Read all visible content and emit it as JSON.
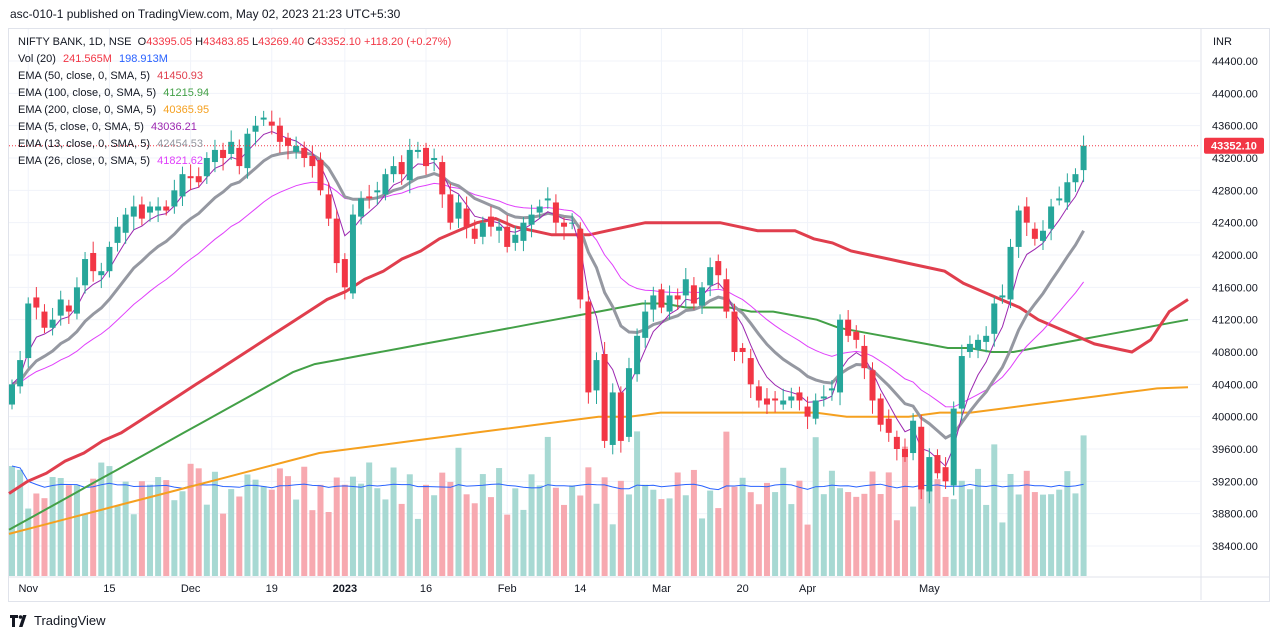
{
  "header": {
    "publish_text": "asc-010-1 published on TradingView.com, May 02, 2023 21:23 UTC+5:30"
  },
  "footer": {
    "brand": "TradingView"
  },
  "legend": {
    "symbol": "NIFTY BANK, 1D, NSE",
    "open": "43395.05",
    "high": "43483.85",
    "low": "43269.40",
    "close": "43352.10",
    "change": "+118.20 (+0.27%)",
    "vol_label": "Vol (20)",
    "vol_value": "241.565M",
    "vol_ma": "198.913M",
    "ema50_label": "EMA (50, close, 0, SMA, 5)",
    "ema50_value": "41450.93",
    "ema100_label": "EMA (100, close, 0, SMA, 5)",
    "ema100_value": "41215.94",
    "ema200_label": "EMA (200, close, 0, SMA, 5)",
    "ema200_value": "40365.95",
    "ema5_label": "EMA (5, close, 0, SMA, 5)",
    "ema5_value": "43036.21",
    "ema13_label": "EMA (13, close, 0, SMA, 5)",
    "ema13_value": "42454.53",
    "ema26_label": "EMA (26, close, 0, SMA, 5)",
    "ema26_value": "41821.62"
  },
  "chart_data": {
    "type": "candlestick",
    "currency": "INR",
    "last_price": "43352.10",
    "y_ticks": [
      "44400.00",
      "44000.00",
      "43600.00",
      "43200.00",
      "42800.00",
      "42400.00",
      "42000.00",
      "41600.00",
      "41200.00",
      "40800.00",
      "40400.00",
      "40000.00",
      "39600.00",
      "39200.00",
      "38800.00",
      "38400.00"
    ],
    "x_ticks": [
      {
        "label": "Nov",
        "i": 2
      },
      {
        "label": "15",
        "i": 12
      },
      {
        "label": "Dec",
        "i": 22
      },
      {
        "label": "19",
        "i": 32
      },
      {
        "label": "2023",
        "i": 41
      },
      {
        "label": "16",
        "i": 51
      },
      {
        "label": "Feb",
        "i": 61
      },
      {
        "label": "14",
        "i": 70
      },
      {
        "label": "Mar",
        "i": 80
      },
      {
        "label": "20",
        "i": 90
      },
      {
        "label": "Apr",
        "i": 98
      },
      {
        "label": "May",
        "i": 113
      }
    ],
    "colors": {
      "up": "#26a69a",
      "down": "#f23645",
      "ema50": "#e03e4d",
      "ema100": "#43a047",
      "ema200": "#f5a01f",
      "ema5": "#9598a1",
      "ema13": "#9c27b0",
      "ema26": "#e040fb",
      "vol_ma": "#2962ff"
    },
    "closes": [
      40400,
      40700,
      41400,
      41350,
      41100,
      41200,
      41450,
      41300,
      41600,
      41950,
      41800,
      41800,
      42100,
      42350,
      42500,
      42600,
      42450,
      42600,
      42600,
      42550,
      42800,
      43000,
      42950,
      42900,
      43200,
      43300,
      43200,
      43400,
      43100,
      43500,
      43600,
      43700,
      43600,
      43400,
      43350,
      43350,
      43200,
      43100,
      42800,
      42450,
      41900,
      41600,
      42500,
      42700,
      42700,
      42800,
      43000,
      43100,
      43000,
      43300,
      43300,
      43100,
      43200,
      42750,
      42400,
      42650,
      42350,
      42200,
      42400,
      42350,
      42350,
      42100,
      42250,
      42400,
      42500,
      42600,
      42700,
      42400,
      42350,
      42400,
      41450,
      40300,
      40700,
      39700,
      40300,
      39700,
      40600,
      41000,
      41300,
      41500,
      41350,
      41500,
      41450,
      41700,
      41400,
      41600,
      41850,
      41750,
      41300,
      40800,
      40800,
      40400,
      40200,
      40150,
      40200,
      40200,
      40250,
      40200,
      40000,
      40200,
      40250,
      40350,
      41200,
      41000,
      40950,
      40600,
      40200,
      39900,
      39800,
      39600,
      39500,
      39950,
      39100,
      39500,
      39300,
      39200,
      40100,
      40750,
      40900,
      40950,
      41000,
      41400,
      41500,
      42100,
      42550,
      42400,
      42200,
      42300,
      42600,
      42700,
      42900,
      43000,
      43352
    ],
    "ema50": [
      39050,
      39200,
      39300,
      39450,
      39550,
      39700,
      39800,
      39950,
      40100,
      40250,
      40400,
      40550,
      40700,
      40850,
      41000,
      41150,
      41300,
      41450,
      41550,
      41700,
      41800,
      41950,
      42050,
      42200,
      42300,
      42400,
      42450,
      42350,
      42300,
      42250,
      42250,
      42250,
      42300,
      42350,
      42400,
      42400,
      42400,
      42400,
      42400,
      42350,
      42300,
      42300,
      42300,
      42200,
      42150,
      42050,
      42000,
      41950,
      41900,
      41850,
      41800,
      41650,
      41550,
      41450,
      41350,
      41200,
      41100,
      41000,
      40900,
      40850,
      40800,
      40950,
      41300,
      41450
    ],
    "ema100": [
      38600,
      38750,
      38900,
      39050,
      39200,
      39350,
      39500,
      39650,
      39800,
      39950,
      40100,
      40250,
      40400,
      40550,
      40650,
      40700,
      40750,
      40800,
      40850,
      40900,
      40950,
      41000,
      41050,
      41100,
      41150,
      41200,
      41250,
      41300,
      41350,
      41400,
      41400,
      41350,
      41350,
      41350,
      41300,
      41300,
      41250,
      41200,
      41100,
      41050,
      41000,
      40950,
      40900,
      40850,
      40850,
      40800,
      40800,
      40850,
      40900,
      40950,
      41000,
      41050,
      41100,
      41150,
      41200
    ],
    "ema200": [
      38550,
      38650,
      38750,
      38850,
      38950,
      39050,
      39150,
      39250,
      39350,
      39450,
      39550,
      39600,
      39650,
      39700,
      39750,
      39800,
      39850,
      39900,
      39950,
      40000,
      40000,
      40050,
      40050,
      40050,
      40050,
      40050,
      40050,
      40000,
      40000,
      40000,
      40050,
      40050,
      40100,
      40150,
      40200,
      40250,
      40300,
      40350,
      40365
    ]
  }
}
